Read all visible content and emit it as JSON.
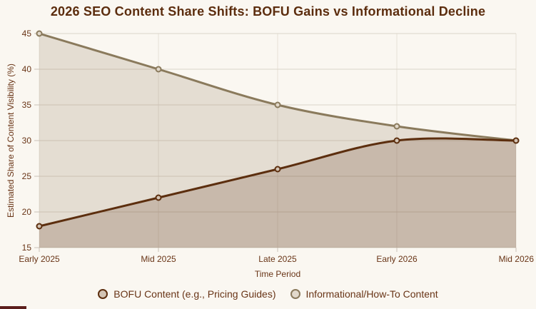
{
  "page": {
    "background": "#faf7f1",
    "title_color": "#5c2d0e",
    "text_color": "#693517"
  },
  "chart_data": {
    "type": "line",
    "title": "2026 SEO Content Share Shifts: BOFU Gains vs Informational Decline",
    "xlabel": "Time Period",
    "ylabel": "Estimated Share of Content Visibility (%)",
    "categories": [
      "Early 2025",
      "Mid 2025",
      "Late 2025",
      "Early 2026",
      "Mid 2026"
    ],
    "ylim": [
      15,
      45
    ],
    "yticks": [
      15,
      20,
      25,
      30,
      35,
      40,
      45
    ],
    "grid": true,
    "legend_position": "bottom",
    "series": [
      {
        "name": "BOFU Content (e.g., Pricing Guides)",
        "values": [
          18,
          22,
          26,
          30,
          30
        ],
        "color": "#5c2e0e",
        "fill": "rgba(92,46,14,0.2)",
        "marker_fill": "#d3c4b4"
      },
      {
        "name": "Informational/How-To Content",
        "values": [
          45,
          40,
          35,
          32,
          30
        ],
        "color": "#8a7a5c",
        "fill": "rgba(138,122,92,0.2)",
        "marker_fill": "#e2d9cb"
      }
    ],
    "gridline_color_h": "#dbd4c9",
    "gridline_color_v": "#e6e0d7",
    "tick_color": "#c9c2b6"
  }
}
